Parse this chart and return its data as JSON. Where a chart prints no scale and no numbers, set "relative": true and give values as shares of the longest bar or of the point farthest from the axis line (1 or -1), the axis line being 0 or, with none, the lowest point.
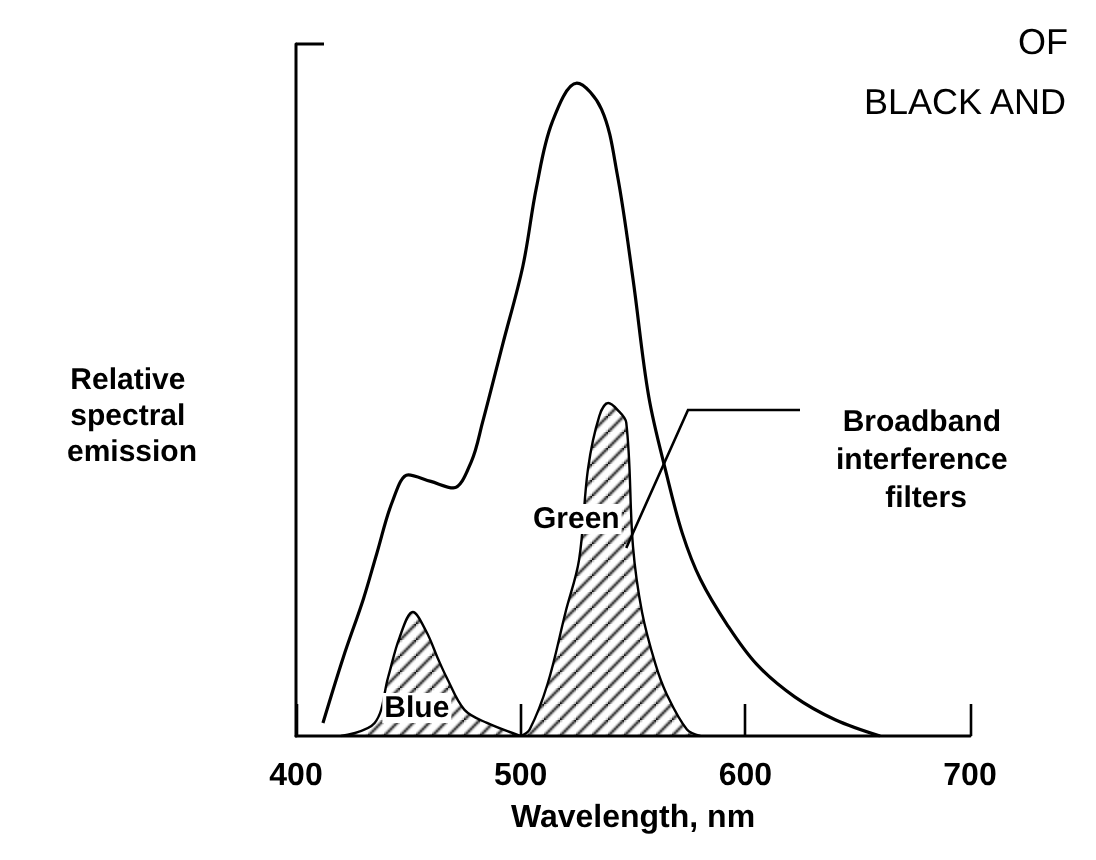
{
  "chart_data": {
    "type": "line",
    "relative": true,
    "xlabel": "Wavelength, nm",
    "ylabel": "Relative spectral emission",
    "xlim": [
      400,
      700
    ],
    "xticks": [
      400,
      500,
      600,
      700
    ],
    "grid": false,
    "marker": "none",
    "line_style": "solid",
    "annotations": [
      "OF",
      "BLACK AND",
      "Broadband interference filters"
    ],
    "series": [
      {
        "color": "#000000",
        "x": [
          412,
          421,
          430,
          436,
          443,
          450,
          460,
          470,
          478,
          483,
          492,
          501,
          507,
          514,
          525,
          536,
          543,
          550,
          557,
          565,
          572,
          580,
          592,
          605,
          622,
          640,
          660
        ],
        "values": [
          0.02,
          0.12,
          0.21,
          0.28,
          0.36,
          0.4,
          0.39,
          0.38,
          0.42,
          0.48,
          0.6,
          0.72,
          0.84,
          0.94,
          1.0,
          0.96,
          0.86,
          0.7,
          0.52,
          0.4,
          0.31,
          0.24,
          0.17,
          0.11,
          0.06,
          0.025,
          0
        ]
      },
      {
        "type": "area",
        "name": "Blue",
        "color": "#000000",
        "x": [
          420,
          435,
          441,
          446,
          452,
          458,
          463,
          467,
          475,
          485,
          500
        ],
        "values": [
          0,
          0.02,
          0.09,
          0.15,
          0.19,
          0.16,
          0.12,
          0.09,
          0.04,
          0.02,
          0
        ]
      },
      {
        "type": "area",
        "name": "Green",
        "color": "#000000",
        "x": [
          500,
          504,
          512,
          520,
          526,
          530,
          535,
          539,
          543,
          547,
          550,
          554,
          560,
          565,
          574,
          580
        ],
        "values": [
          0,
          0.01,
          0.08,
          0.19,
          0.27,
          0.41,
          0.49,
          0.51,
          0.5,
          0.48,
          0.29,
          0.19,
          0.11,
          0.064,
          0.01,
          0
        ]
      }
    ]
  }
}
